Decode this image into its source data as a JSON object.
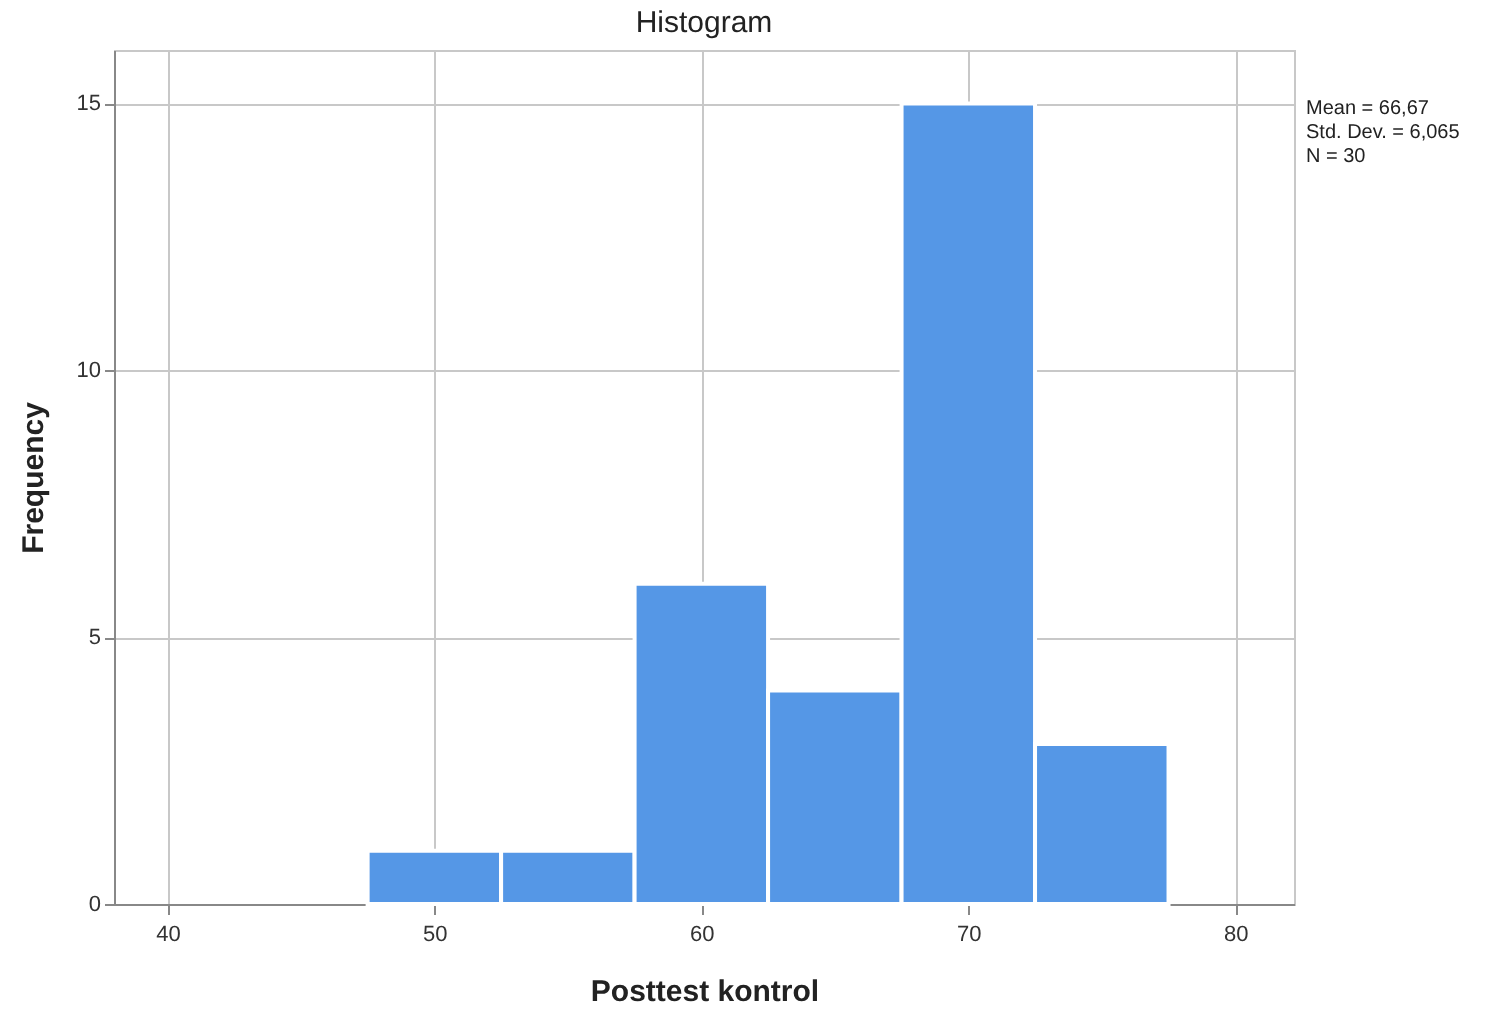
{
  "chart_data": {
    "type": "histogram",
    "title": "Histogram",
    "xlabel": "Posttest kontrol",
    "ylabel": "Frequency",
    "bins": [
      47.5,
      52.5,
      57.5,
      62.5,
      67.5,
      72.5,
      77.5
    ],
    "values": [
      1,
      1,
      6,
      4,
      15,
      3
    ],
    "color": "#5597e6",
    "xlim": [
      38,
      82.2
    ],
    "xticks": [
      40,
      50,
      60,
      70,
      80
    ],
    "ylim": [
      0,
      16
    ],
    "yticks": [
      0,
      5,
      10,
      15
    ],
    "grid": true,
    "annotations": [
      "Mean = 66,67",
      "Std. Dev. = 6,065",
      "N = 30"
    ]
  }
}
